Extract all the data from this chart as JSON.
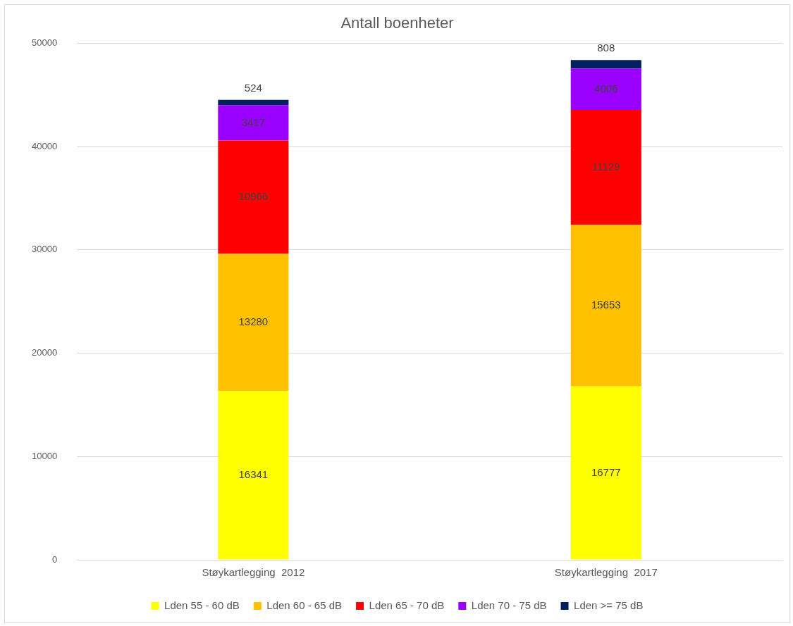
{
  "chart_data": {
    "type": "bar",
    "title": "Antall boenheter",
    "categories": [
      "Støykartlegging  2012",
      "Støykartlegging  2017"
    ],
    "stacked": true,
    "data_labels": true,
    "grid": "y",
    "legend": "bottom",
    "ylim": [
      0,
      50000
    ],
    "yticks": [
      0,
      10000,
      20000,
      30000,
      40000,
      50000
    ],
    "series": [
      {
        "name": "Lden 55 - 60 dB",
        "color": "#ffff00",
        "values": [
          16341,
          16777
        ]
      },
      {
        "name": "Lden 60 - 65 dB",
        "color": "#ffc000",
        "values": [
          13280,
          15653
        ]
      },
      {
        "name": "Lden 65 - 70 dB",
        "color": "#ff0000",
        "values": [
          10966,
          11129
        ]
      },
      {
        "name": "Lden 70 - 75 dB",
        "color": "#9900ff",
        "values": [
          3417,
          4006
        ]
      },
      {
        "name": "Lden >= 75 dB",
        "color": "#002060",
        "values": [
          524,
          808
        ]
      }
    ]
  }
}
